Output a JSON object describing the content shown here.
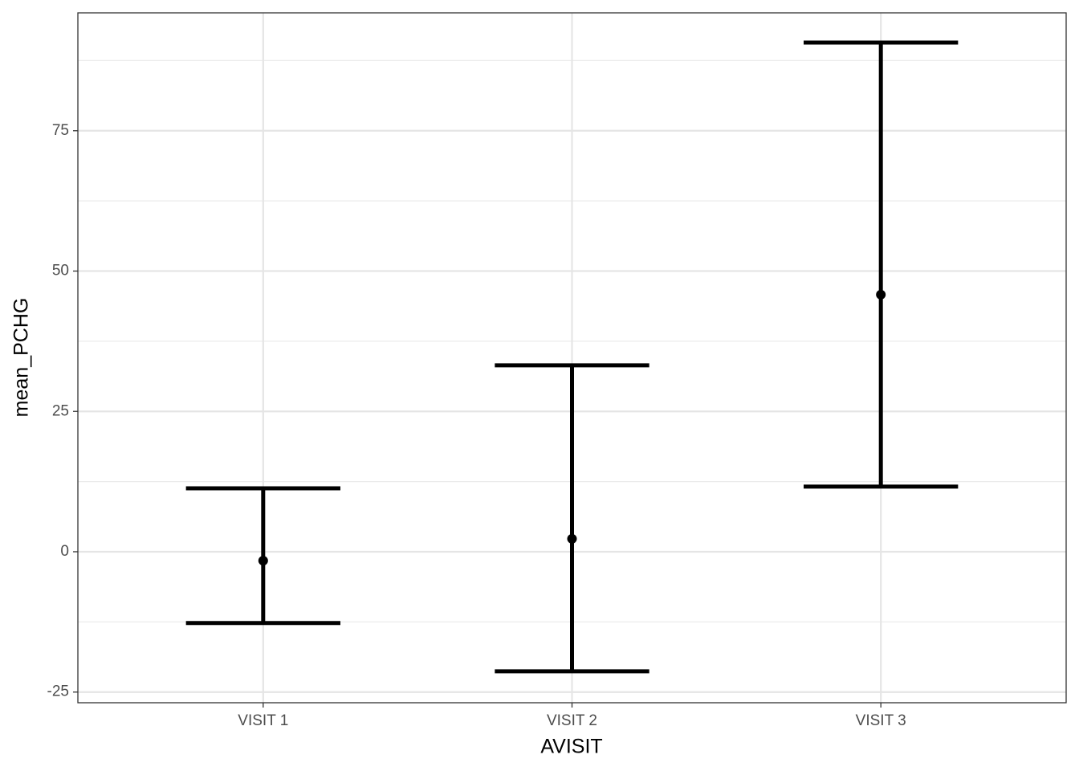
{
  "chart_data": {
    "type": "errorbar",
    "x_label": "AVISIT",
    "y_label": "mean_PCHG",
    "categories": [
      "VISIT 1",
      "VISIT 2",
      "VISIT 3"
    ],
    "values": [
      -1.6,
      2.3,
      45.8
    ],
    "lower": [
      -12.7,
      -21.3,
      11.6
    ],
    "upper": [
      11.3,
      33.2,
      90.7
    ],
    "color": "#000000",
    "ylim": [
      -26.9,
      96.0
    ],
    "yticks": [
      -25,
      0,
      25,
      50,
      75
    ],
    "minor_yticks": [
      -12.5,
      12.5,
      37.5,
      62.5,
      87.5
    ],
    "grid": true
  }
}
